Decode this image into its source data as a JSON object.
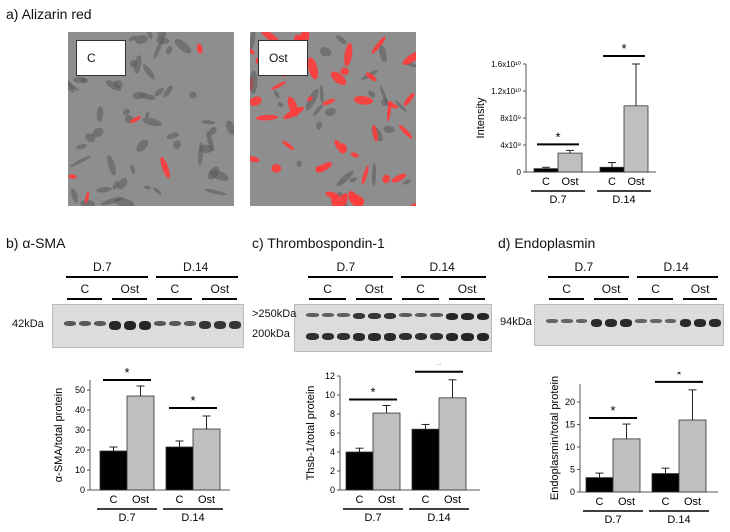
{
  "panel_a": {
    "label": "a) Alizarin red",
    "img_control_label": "C",
    "img_ost_label": "Ost",
    "chart": {
      "ylabel": "Intensity",
      "y_ticks": [
        "0",
        "4x10⁹",
        "8x10⁹",
        "1.2x10¹⁰",
        "1.6x10¹⁰"
      ],
      "groups": [
        "D.7",
        "D.14"
      ],
      "categories": [
        "C",
        "Ost"
      ],
      "sig": "*"
    }
  },
  "panel_b": {
    "label": "b) α-SMA",
    "blot_groups": [
      "D.7",
      "D.14"
    ],
    "blot_lanes": [
      "C",
      "Ost",
      "C",
      "Ost"
    ],
    "mw_labels": [
      "42kDa"
    ],
    "chart": {
      "ylabel": "α-SMA/total protein",
      "y_ticks": [
        "0",
        "10",
        "20",
        "30",
        "40",
        "50"
      ],
      "groups": [
        "D.7",
        "D.14"
      ],
      "categories": [
        "C",
        "Ost"
      ],
      "sig": "*"
    }
  },
  "panel_c": {
    "label": "c) Thrombospondin-1",
    "blot_groups": [
      "D.7",
      "D.14"
    ],
    "blot_lanes": [
      "C",
      "Ost",
      "C",
      "Ost"
    ],
    "mw_labels": [
      ">250kDa",
      "200kDa"
    ],
    "chart": {
      "ylabel": "Thsb-1/total protein",
      "y_ticks": [
        "0",
        "2",
        "4",
        "6",
        "8",
        "10",
        "12"
      ],
      "groups": [
        "D.7",
        "D.14"
      ],
      "categories": [
        "C",
        "Ost"
      ],
      "sig": "*"
    }
  },
  "panel_d": {
    "label": "d) Endoplasmin",
    "blot_groups": [
      "D.7",
      "D.14"
    ],
    "blot_lanes": [
      "C",
      "Ost",
      "C",
      "Ost"
    ],
    "mw_labels": [
      "94kDa"
    ],
    "chart": {
      "ylabel": "Endoplasmin/total protein",
      "y_ticks": [
        "0",
        "5",
        "10",
        "15",
        "20"
      ],
      "groups": [
        "D.7",
        "D.14"
      ],
      "categories": [
        "C",
        "Ost"
      ],
      "sig": "*"
    }
  },
  "colors": {
    "control_bar": "#000000",
    "ost_bar": "#bfbfbf",
    "red_stain": "#ff3b3b"
  },
  "chart_data": [
    {
      "type": "bar",
      "title": "",
      "ylabel": "Intensity",
      "categories": [
        "D.7 C",
        "D.7 Ost",
        "D.14 C",
        "D.14 Ost"
      ],
      "series": [
        {
          "values": [
            500000000.0,
            2800000000.0,
            700000000.0,
            9800000000.0
          ],
          "errors": [
            200000000.0,
            400000000.0,
            700000000.0,
            6200000000.0
          ]
        }
      ],
      "ylim": [
        0,
        16000000000.0
      ]
    },
    {
      "type": "bar",
      "title": "",
      "ylabel": "α-SMA/total protein",
      "categories": [
        "D.7 C",
        "D.7 Ost",
        "D.14 C",
        "D.14 Ost"
      ],
      "series": [
        {
          "values": [
            19.5,
            47,
            21.5,
            30.5
          ],
          "errors": [
            2,
            5,
            3,
            6.5
          ]
        }
      ],
      "ylim": [
        0,
        55
      ]
    },
    {
      "type": "bar",
      "title": "",
      "ylabel": "Thsb-1/total protein",
      "categories": [
        "D.7 C",
        "D.7 Ost",
        "D.14 C",
        "D.14 Ost"
      ],
      "series": [
        {
          "values": [
            4,
            8.1,
            6.4,
            9.7
          ],
          "errors": [
            0.4,
            0.8,
            0.5,
            1.9
          ]
        }
      ],
      "ylim": [
        0,
        12
      ]
    },
    {
      "type": "bar",
      "title": "",
      "ylabel": "Endoplasmin/total protein",
      "categories": [
        "D.7 C",
        "D.7 Ost",
        "D.14 C",
        "D.14 Ost"
      ],
      "series": [
        {
          "values": [
            3.2,
            11.8,
            4.1,
            16
          ],
          "errors": [
            1,
            3.3,
            1.2,
            6.7
          ]
        }
      ],
      "ylim": [
        0,
        24
      ]
    }
  ]
}
